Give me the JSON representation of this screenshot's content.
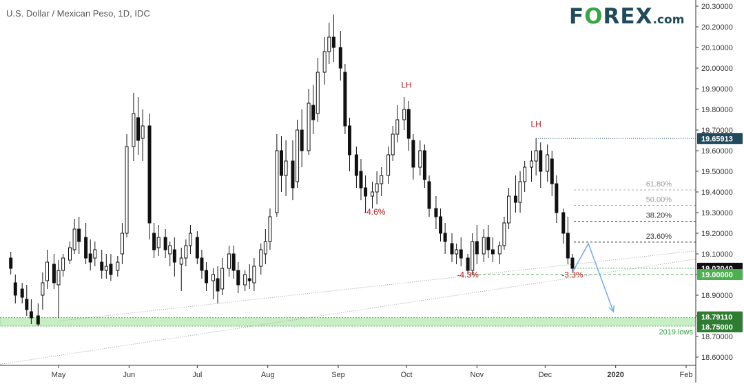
{
  "brand": {
    "logo_main_before": "F",
    "logo_o": "O",
    "logo_main_after": "REX",
    "logo_suffix": ".com"
  },
  "chart_data": {
    "type": "candlestick",
    "title": "U.S. Dollar / Mexican Peso, 1D, IDC",
    "x_tick_labels": [
      "May",
      "Jun",
      "Jul",
      "Aug",
      "Sep",
      "Oct",
      "Nov",
      "Dec",
      "2020",
      "Feb"
    ],
    "y_tick_labels": [
      "20.30000",
      "20.20000",
      "20.10000",
      "20.00000",
      "19.90000",
      "19.80000",
      "19.70000",
      "19.60000",
      "19.50000",
      "19.40000",
      "19.30000",
      "19.20000",
      "19.10000",
      "19.00000",
      "18.90000",
      "18.80000",
      "18.70000",
      "18.60000"
    ],
    "ylim": [
      18.56,
      20.31
    ],
    "price_labels": [
      {
        "value": "19.65913",
        "price": 19.65913,
        "style": "level"
      },
      {
        "value": "19.03040",
        "price": 19.0304,
        "style": "last"
      },
      {
        "value": "19.00000",
        "price": 19.0,
        "style": "green"
      },
      {
        "value": "18.79110",
        "price": 18.7911,
        "style": "zone"
      },
      {
        "value": "18.75000",
        "price": 18.75,
        "style": "zone"
      }
    ],
    "support_zone": {
      "from": 18.75,
      "to": 18.7911,
      "label": "2019 lows"
    },
    "fib_levels": [
      {
        "label": "61.80%",
        "price": 19.41
      },
      {
        "label": "50.00%",
        "price": 19.335
      },
      {
        "label": "38.20%",
        "price": 19.258
      },
      {
        "label": "23.60%",
        "price": 19.157
      }
    ],
    "annotations": [
      {
        "text": "LH",
        "date": "2019-10-01",
        "price": 19.905
      },
      {
        "text": "LH",
        "date": "2019-11-27",
        "price": 19.715
      },
      {
        "text": "-4.6%",
        "date": "2019-09-17",
        "price": 19.29
      },
      {
        "text": "-4.3%",
        "date": "2019-10-28",
        "price": 18.985
      },
      {
        "text": "-3.3%",
        "date": "2019-12-13",
        "price": 18.985
      }
    ],
    "projection": {
      "points": [
        [
          "2019-12-13",
          19.01
        ],
        [
          "2019-12-20",
          19.15
        ],
        [
          "2019-12-31",
          18.82
        ]
      ]
    },
    "candles": [
      {
        "d": "2019-04-10",
        "o": 19.08,
        "h": 19.11,
        "c": 19.03,
        "l": 19.0
      },
      {
        "d": "2019-04-12",
        "o": 18.96,
        "h": 19.0,
        "c": 18.9,
        "l": 18.86
      },
      {
        "d": "2019-04-15",
        "o": 18.93,
        "h": 18.96,
        "c": 18.89,
        "l": 18.86
      },
      {
        "d": "2019-04-17",
        "o": 18.88,
        "h": 18.95,
        "c": 18.83,
        "l": 18.8
      },
      {
        "d": "2019-04-19",
        "o": 18.82,
        "h": 18.88,
        "c": 18.79,
        "l": 18.76
      },
      {
        "d": "2019-04-22",
        "o": 18.8,
        "h": 18.86,
        "c": 18.76,
        "l": 18.75
      },
      {
        "d": "2019-04-24",
        "o": 18.9,
        "h": 19.01,
        "c": 18.96,
        "l": 18.83
      },
      {
        "d": "2019-04-26",
        "o": 18.97,
        "h": 19.12,
        "c": 19.06,
        "l": 18.93
      },
      {
        "d": "2019-04-29",
        "o": 19.05,
        "h": 19.1,
        "c": 18.96,
        "l": 18.93
      },
      {
        "d": "2019-05-01",
        "o": 18.95,
        "h": 19.07,
        "c": 19.02,
        "l": 18.79
      },
      {
        "d": "2019-05-03",
        "o": 19.02,
        "h": 19.1,
        "c": 19.08,
        "l": 18.99
      },
      {
        "d": "2019-05-06",
        "o": 19.07,
        "h": 19.16,
        "c": 19.13,
        "l": 19.05
      },
      {
        "d": "2019-05-08",
        "o": 19.12,
        "h": 19.27,
        "c": 19.22,
        "l": 19.1
      },
      {
        "d": "2019-05-10",
        "o": 19.22,
        "h": 19.28,
        "c": 19.16,
        "l": 19.1
      },
      {
        "d": "2019-05-13",
        "o": 19.18,
        "h": 19.25,
        "c": 19.08,
        "l": 19.05
      },
      {
        "d": "2019-05-15",
        "o": 19.1,
        "h": 19.17,
        "c": 19.06,
        "l": 19.02
      },
      {
        "d": "2019-05-17",
        "o": 19.08,
        "h": 19.16,
        "c": 19.12,
        "l": 19.04
      },
      {
        "d": "2019-05-20",
        "o": 19.06,
        "h": 19.12,
        "c": 19.02,
        "l": 18.98
      },
      {
        "d": "2019-05-22",
        "o": 19.02,
        "h": 19.1,
        "c": 19.04,
        "l": 18.98
      },
      {
        "d": "2019-05-24",
        "o": 19.05,
        "h": 19.1,
        "c": 19.0,
        "l": 18.97
      },
      {
        "d": "2019-05-27",
        "o": 19.02,
        "h": 19.09,
        "c": 19.06,
        "l": 18.99
      },
      {
        "d": "2019-05-29",
        "o": 19.1,
        "h": 19.25,
        "c": 19.2,
        "l": 19.05
      },
      {
        "d": "2019-05-31",
        "o": 19.2,
        "h": 19.68,
        "c": 19.62,
        "l": 19.18
      },
      {
        "d": "2019-06-03",
        "o": 19.62,
        "h": 19.88,
        "c": 19.78,
        "l": 19.55
      },
      {
        "d": "2019-06-05",
        "o": 19.76,
        "h": 19.86,
        "c": 19.65,
        "l": 19.58
      },
      {
        "d": "2019-06-07",
        "o": 19.66,
        "h": 19.8,
        "c": 19.72,
        "l": 19.55
      },
      {
        "d": "2019-06-10",
        "o": 19.72,
        "h": 19.78,
        "c": 19.25,
        "l": 19.17
      },
      {
        "d": "2019-06-12",
        "o": 19.2,
        "h": 19.25,
        "c": 19.12,
        "l": 19.08
      },
      {
        "d": "2019-06-14",
        "o": 19.13,
        "h": 19.24,
        "c": 19.18,
        "l": 19.09
      },
      {
        "d": "2019-06-17",
        "o": 19.18,
        "h": 19.22,
        "c": 19.12,
        "l": 19.08
      },
      {
        "d": "2019-06-19",
        "o": 19.1,
        "h": 19.16,
        "c": 19.14,
        "l": 19.04
      },
      {
        "d": "2019-06-21",
        "o": 19.12,
        "h": 19.18,
        "c": 19.06,
        "l": 18.99
      },
      {
        "d": "2019-06-24",
        "o": 19.05,
        "h": 19.13,
        "c": 19.08,
        "l": 18.92
      },
      {
        "d": "2019-06-26",
        "o": 19.08,
        "h": 19.17,
        "c": 19.14,
        "l": 19.04
      },
      {
        "d": "2019-06-28",
        "o": 19.14,
        "h": 19.24,
        "c": 19.2,
        "l": 19.1
      },
      {
        "d": "2019-07-01",
        "o": 19.18,
        "h": 19.21,
        "c": 19.08,
        "l": 19.05
      },
      {
        "d": "2019-07-03",
        "o": 19.08,
        "h": 19.12,
        "c": 19.02,
        "l": 18.98
      },
      {
        "d": "2019-07-05",
        "o": 19.02,
        "h": 19.06,
        "c": 18.96,
        "l": 18.92
      },
      {
        "d": "2019-07-08",
        "o": 18.97,
        "h": 19.03,
        "c": 19.0,
        "l": 18.88
      },
      {
        "d": "2019-07-10",
        "o": 18.98,
        "h": 19.04,
        "c": 18.92,
        "l": 18.86
      },
      {
        "d": "2019-07-12",
        "o": 18.93,
        "h": 19.08,
        "c": 19.03,
        "l": 18.9
      },
      {
        "d": "2019-07-15",
        "o": 19.03,
        "h": 19.14,
        "c": 19.1,
        "l": 18.99
      },
      {
        "d": "2019-07-17",
        "o": 19.1,
        "h": 19.14,
        "c": 19.02,
        "l": 18.98
      },
      {
        "d": "2019-07-19",
        "o": 19.02,
        "h": 19.06,
        "c": 18.95,
        "l": 18.91
      },
      {
        "d": "2019-07-22",
        "o": 18.95,
        "h": 19.02,
        "c": 19.0,
        "l": 18.92
      },
      {
        "d": "2019-07-24",
        "o": 18.98,
        "h": 19.05,
        "c": 18.97,
        "l": 18.93
      },
      {
        "d": "2019-07-26",
        "o": 18.96,
        "h": 19.08,
        "c": 19.04,
        "l": 18.92
      },
      {
        "d": "2019-07-29",
        "o": 19.04,
        "h": 19.15,
        "c": 19.12,
        "l": 19.0
      },
      {
        "d": "2019-07-31",
        "o": 19.1,
        "h": 19.22,
        "c": 19.16,
        "l": 19.05
      },
      {
        "d": "2019-08-02",
        "o": 19.16,
        "h": 19.32,
        "c": 19.28,
        "l": 19.12
      },
      {
        "d": "2019-08-05",
        "o": 19.3,
        "h": 19.68,
        "c": 19.6,
        "l": 19.28
      },
      {
        "d": "2019-08-07",
        "o": 19.6,
        "h": 19.67,
        "c": 19.48,
        "l": 19.4
      },
      {
        "d": "2019-08-09",
        "o": 19.48,
        "h": 19.65,
        "c": 19.55,
        "l": 19.38
      },
      {
        "d": "2019-08-12",
        "o": 19.55,
        "h": 19.65,
        "c": 19.42,
        "l": 19.36
      },
      {
        "d": "2019-08-14",
        "o": 19.45,
        "h": 19.75,
        "c": 19.7,
        "l": 19.42
      },
      {
        "d": "2019-08-16",
        "o": 19.7,
        "h": 19.8,
        "c": 19.6,
        "l": 19.52
      },
      {
        "d": "2019-08-19",
        "o": 19.6,
        "h": 19.9,
        "c": 19.83,
        "l": 19.58
      },
      {
        "d": "2019-08-21",
        "o": 19.82,
        "h": 19.92,
        "c": 19.75,
        "l": 19.68
      },
      {
        "d": "2019-08-23",
        "o": 19.78,
        "h": 20.05,
        "c": 19.98,
        "l": 19.74
      },
      {
        "d": "2019-08-26",
        "o": 19.98,
        "h": 20.15,
        "c": 20.08,
        "l": 19.92
      },
      {
        "d": "2019-08-28",
        "o": 20.08,
        "h": 20.22,
        "c": 20.15,
        "l": 20.02
      },
      {
        "d": "2019-08-30",
        "o": 20.15,
        "h": 20.26,
        "c": 20.1,
        "l": 20.03
      },
      {
        "d": "2019-09-02",
        "o": 20.1,
        "h": 20.18,
        "c": 20.0,
        "l": 19.94
      },
      {
        "d": "2019-09-04",
        "o": 19.98,
        "h": 20.02,
        "c": 19.72,
        "l": 19.68
      },
      {
        "d": "2019-09-06",
        "o": 19.72,
        "h": 19.76,
        "c": 19.58,
        "l": 19.5
      },
      {
        "d": "2019-09-09",
        "o": 19.58,
        "h": 19.62,
        "c": 19.48,
        "l": 19.42
      },
      {
        "d": "2019-09-11",
        "o": 19.5,
        "h": 19.56,
        "c": 19.42,
        "l": 19.36
      },
      {
        "d": "2019-09-13",
        "o": 19.42,
        "h": 19.48,
        "c": 19.38,
        "l": 19.3
      },
      {
        "d": "2019-09-16",
        "o": 19.38,
        "h": 19.45,
        "c": 19.4,
        "l": 19.32
      },
      {
        "d": "2019-09-18",
        "o": 19.4,
        "h": 19.5,
        "c": 19.44,
        "l": 19.34
      },
      {
        "d": "2019-09-20",
        "o": 19.44,
        "h": 19.52,
        "c": 19.48,
        "l": 19.38
      },
      {
        "d": "2019-09-23",
        "o": 19.48,
        "h": 19.62,
        "c": 19.58,
        "l": 19.44
      },
      {
        "d": "2019-09-25",
        "o": 19.58,
        "h": 19.72,
        "c": 19.68,
        "l": 19.55
      },
      {
        "d": "2019-09-27",
        "o": 19.68,
        "h": 19.82,
        "c": 19.75,
        "l": 19.64
      },
      {
        "d": "2019-09-30",
        "o": 19.75,
        "h": 19.86,
        "c": 19.8,
        "l": 19.7
      },
      {
        "d": "2019-10-02",
        "o": 19.8,
        "h": 19.84,
        "c": 19.66,
        "l": 19.6
      },
      {
        "d": "2019-10-04",
        "o": 19.65,
        "h": 19.68,
        "c": 19.52,
        "l": 19.46
      },
      {
        "d": "2019-10-07",
        "o": 19.52,
        "h": 19.65,
        "c": 19.6,
        "l": 19.48
      },
      {
        "d": "2019-10-09",
        "o": 19.6,
        "h": 19.63,
        "c": 19.46,
        "l": 19.42
      },
      {
        "d": "2019-10-11",
        "o": 19.45,
        "h": 19.48,
        "c": 19.32,
        "l": 19.28
      },
      {
        "d": "2019-10-14",
        "o": 19.32,
        "h": 19.38,
        "c": 19.28,
        "l": 19.22
      },
      {
        "d": "2019-10-16",
        "o": 19.28,
        "h": 19.32,
        "c": 19.2,
        "l": 19.16
      },
      {
        "d": "2019-10-18",
        "o": 19.2,
        "h": 19.25,
        "c": 19.16,
        "l": 19.1
      },
      {
        "d": "2019-10-21",
        "o": 19.15,
        "h": 19.2,
        "c": 19.1,
        "l": 19.06
      },
      {
        "d": "2019-10-23",
        "o": 19.1,
        "h": 19.15,
        "c": 19.12,
        "l": 19.05
      },
      {
        "d": "2019-10-25",
        "o": 19.12,
        "h": 19.18,
        "c": 19.08,
        "l": 19.04
      },
      {
        "d": "2019-10-28",
        "o": 19.08,
        "h": 19.1,
        "c": 19.02,
        "l": 19.0
      },
      {
        "d": "2019-10-30",
        "o": 19.02,
        "h": 19.2,
        "c": 19.16,
        "l": 19.0
      },
      {
        "d": "2019-11-01",
        "o": 19.16,
        "h": 19.24,
        "c": 19.1,
        "l": 19.05
      },
      {
        "d": "2019-11-04",
        "o": 19.1,
        "h": 19.22,
        "c": 19.18,
        "l": 19.06
      },
      {
        "d": "2019-11-06",
        "o": 19.18,
        "h": 19.24,
        "c": 19.12,
        "l": 19.08
      },
      {
        "d": "2019-11-08",
        "o": 19.12,
        "h": 19.18,
        "c": 19.1,
        "l": 19.06
      },
      {
        "d": "2019-11-11",
        "o": 19.1,
        "h": 19.16,
        "c": 19.14,
        "l": 19.05
      },
      {
        "d": "2019-11-13",
        "o": 19.14,
        "h": 19.28,
        "c": 19.25,
        "l": 19.12
      },
      {
        "d": "2019-11-15",
        "o": 19.25,
        "h": 19.42,
        "c": 19.38,
        "l": 19.22
      },
      {
        "d": "2019-11-18",
        "o": 19.38,
        "h": 19.48,
        "c": 19.35,
        "l": 19.3
      },
      {
        "d": "2019-11-20",
        "o": 19.35,
        "h": 19.5,
        "c": 19.45,
        "l": 19.3
      },
      {
        "d": "2019-11-22",
        "o": 19.45,
        "h": 19.55,
        "c": 19.52,
        "l": 19.4
      },
      {
        "d": "2019-11-25",
        "o": 19.52,
        "h": 19.6,
        "c": 19.55,
        "l": 19.45
      },
      {
        "d": "2019-11-27",
        "o": 19.55,
        "h": 19.66,
        "c": 19.6,
        "l": 19.48
      },
      {
        "d": "2019-11-29",
        "o": 19.6,
        "h": 19.64,
        "c": 19.5,
        "l": 19.42
      },
      {
        "d": "2019-12-02",
        "o": 19.5,
        "h": 19.63,
        "c": 19.58,
        "l": 19.45
      },
      {
        "d": "2019-12-04",
        "o": 19.56,
        "h": 19.6,
        "c": 19.44,
        "l": 19.38
      },
      {
        "d": "2019-12-06",
        "o": 19.44,
        "h": 19.48,
        "c": 19.3,
        "l": 19.25
      },
      {
        "d": "2019-12-09",
        "o": 19.3,
        "h": 19.32,
        "c": 19.2,
        "l": 19.15
      },
      {
        "d": "2019-12-11",
        "o": 19.2,
        "h": 19.28,
        "c": 19.08,
        "l": 19.05
      },
      {
        "d": "2019-12-13",
        "o": 19.08,
        "h": 19.1,
        "c": 19.03,
        "l": 19.01
      }
    ]
  }
}
